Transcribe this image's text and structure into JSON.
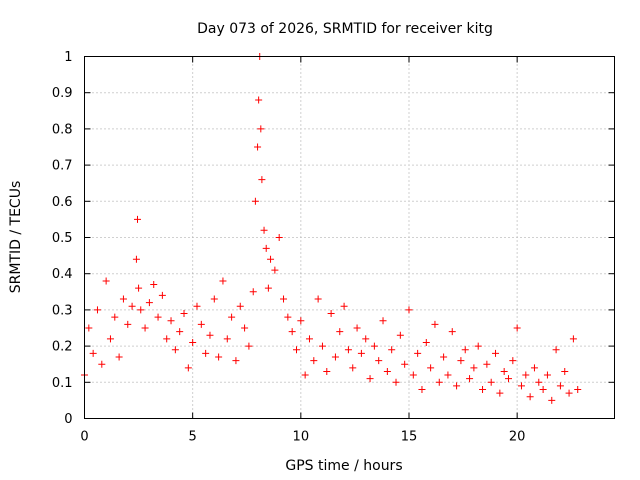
{
  "chart_data": {
    "type": "scatter",
    "title": "Day 073 of 2026, SRMTID for receiver kitg",
    "xlabel": "GPS time / hours",
    "ylabel": "SRMTID / TECUs",
    "xlim": [
      0,
      24.5
    ],
    "ylim": [
      0,
      1
    ],
    "xticks": [
      0,
      5,
      10,
      15,
      20
    ],
    "xtick_labels": [
      "0",
      "5",
      "10",
      "15",
      "20"
    ],
    "yticks": [
      0,
      0.1,
      0.2,
      0.3,
      0.4,
      0.5,
      0.6,
      0.7,
      0.8,
      0.9,
      1
    ],
    "ytick_labels": [
      "0",
      "0.1",
      "0.2",
      "0.3",
      "0.4",
      "0.5",
      "0.6",
      "0.7",
      "0.8",
      "0.9",
      "1"
    ],
    "grid": true,
    "marker": "+",
    "color": "#ff0000",
    "series": [
      {
        "name": "SRMTID",
        "x": [
          0.0,
          0.2,
          0.4,
          0.6,
          0.8,
          1.0,
          1.2,
          1.4,
          1.6,
          1.8,
          2.0,
          2.2,
          2.4,
          2.45,
          2.5,
          2.6,
          2.8,
          3.0,
          3.2,
          3.4,
          3.6,
          3.8,
          4.0,
          4.2,
          4.4,
          4.6,
          4.8,
          5.0,
          5.2,
          5.4,
          5.6,
          5.8,
          6.0,
          6.2,
          6.4,
          6.6,
          6.8,
          7.0,
          7.2,
          7.4,
          7.6,
          7.8,
          7.9,
          8.0,
          8.05,
          8.1,
          8.15,
          8.2,
          8.3,
          8.4,
          8.5,
          8.6,
          8.8,
          9.0,
          9.2,
          9.4,
          9.6,
          9.8,
          10.0,
          10.2,
          10.4,
          10.6,
          10.8,
          11.0,
          11.2,
          11.4,
          11.6,
          11.8,
          12.0,
          12.2,
          12.4,
          12.6,
          12.8,
          13.0,
          13.2,
          13.4,
          13.6,
          13.8,
          14.0,
          14.2,
          14.4,
          14.6,
          14.8,
          15.0,
          15.2,
          15.4,
          15.6,
          15.8,
          16.0,
          16.2,
          16.4,
          16.6,
          16.8,
          17.0,
          17.2,
          17.4,
          17.6,
          17.8,
          18.0,
          18.2,
          18.4,
          18.6,
          18.8,
          19.0,
          19.2,
          19.4,
          19.6,
          19.8,
          20.0,
          20.2,
          20.4,
          20.6,
          20.8,
          21.0,
          21.2,
          21.4,
          21.6,
          21.8,
          22.0,
          22.2,
          22.4,
          22.6,
          22.8
        ],
        "y": [
          0.12,
          0.25,
          0.18,
          0.3,
          0.15,
          0.38,
          0.22,
          0.28,
          0.17,
          0.33,
          0.26,
          0.31,
          0.44,
          0.55,
          0.36,
          0.3,
          0.25,
          0.32,
          0.37,
          0.28,
          0.34,
          0.22,
          0.27,
          0.19,
          0.24,
          0.29,
          0.14,
          0.21,
          0.31,
          0.26,
          0.18,
          0.23,
          0.33,
          0.17,
          0.38,
          0.22,
          0.28,
          0.16,
          0.31,
          0.25,
          0.2,
          0.35,
          0.6,
          0.75,
          0.88,
          1.0,
          0.8,
          0.66,
          0.52,
          0.47,
          0.36,
          0.44,
          0.41,
          0.5,
          0.33,
          0.28,
          0.24,
          0.19,
          0.27,
          0.12,
          0.22,
          0.16,
          0.33,
          0.2,
          0.13,
          0.29,
          0.17,
          0.24,
          0.31,
          0.19,
          0.14,
          0.25,
          0.18,
          0.22,
          0.11,
          0.2,
          0.16,
          0.27,
          0.13,
          0.19,
          0.1,
          0.23,
          0.15,
          0.3,
          0.12,
          0.18,
          0.08,
          0.21,
          0.14,
          0.26,
          0.1,
          0.17,
          0.12,
          0.24,
          0.09,
          0.16,
          0.19,
          0.11,
          0.14,
          0.2,
          0.08,
          0.15,
          0.1,
          0.18,
          0.07,
          0.13,
          0.11,
          0.16,
          0.25,
          0.09,
          0.12,
          0.06,
          0.14,
          0.1,
          0.08,
          0.12,
          0.05,
          0.19,
          0.09,
          0.13,
          0.07,
          0.22,
          0.08
        ]
      }
    ]
  }
}
